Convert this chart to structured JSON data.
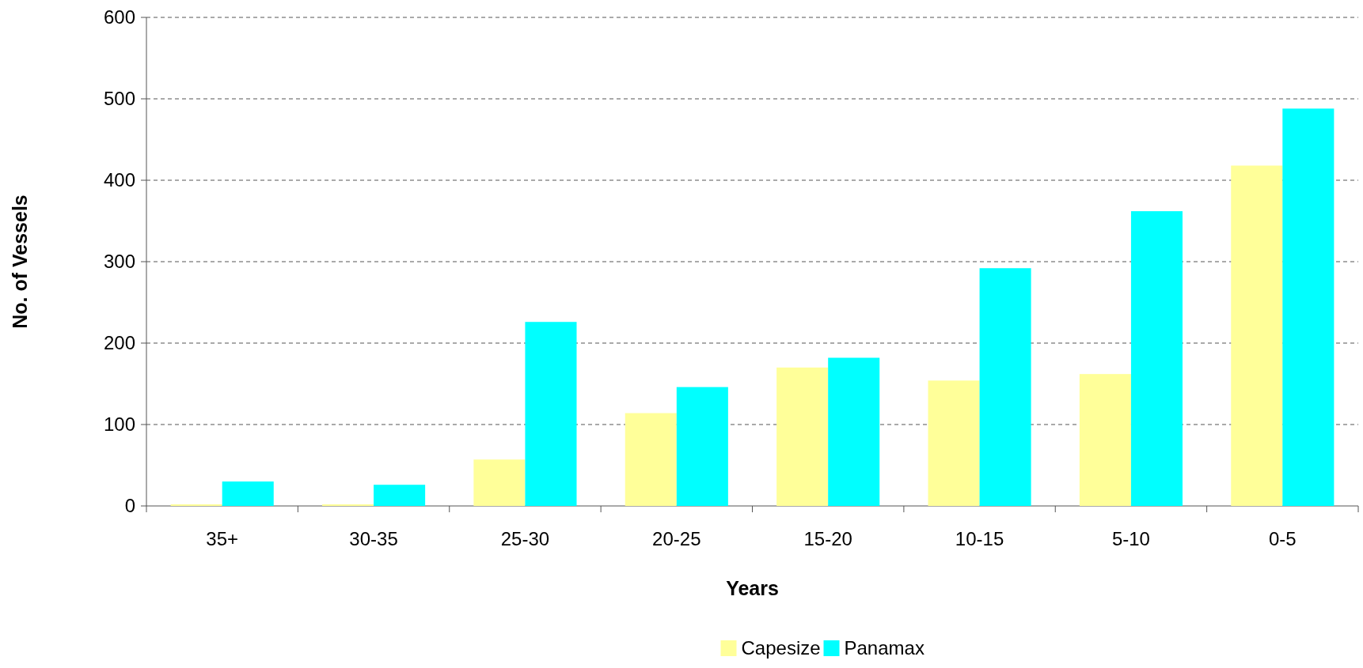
{
  "chart_data": {
    "type": "bar",
    "xlabel": "Years",
    "ylabel": "No. of Vessels",
    "categories": [
      "35+",
      "30-35",
      "25-30",
      "20-25",
      "15-20",
      "10-15",
      "5-10",
      "0-5"
    ],
    "series": [
      {
        "name": "Capesize",
        "color": "#ffff99",
        "values": [
          2,
          2,
          57,
          114,
          170,
          154,
          162,
          418
        ]
      },
      {
        "name": "Panamax",
        "color": "#00ffff",
        "values": [
          30,
          26,
          226,
          146,
          182,
          292,
          362,
          488
        ]
      }
    ],
    "ylim": [
      0,
      600
    ],
    "yticks": [
      0,
      100,
      200,
      300,
      400,
      500,
      600
    ],
    "grid": "y",
    "legend": "bottom"
  }
}
